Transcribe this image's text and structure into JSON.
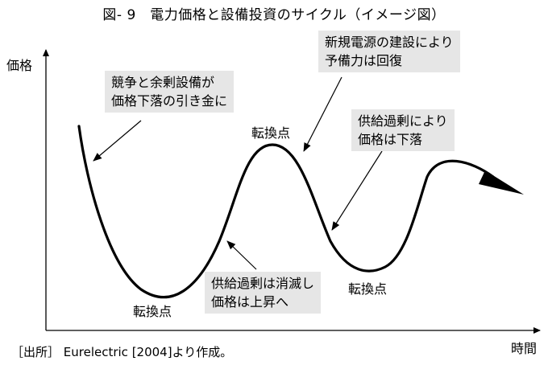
{
  "title": "図- 9　電力価格と設備投資のサイクル（イメージ図）",
  "axes": {
    "y_label": "価格",
    "x_label": "時間"
  },
  "callouts": {
    "competition": [
      "競争と余剰設備が",
      "価格下落の引き金に"
    ],
    "recovery": [
      "新規電源の建設により",
      "予備力は回復"
    ],
    "oversupply": [
      "供給過剰により",
      "価格は下落"
    ],
    "resolved": [
      "供給過剰は消滅し",
      "価格は上昇へ"
    ]
  },
  "turning_points": {
    "trough1": "転換点",
    "peak": "転換点",
    "trough2": "転換点"
  },
  "source": "［出所］ Eurelectric [2004]より作成。",
  "colors": {
    "callout_bg": "#e6e6e6",
    "line": "#000000"
  }
}
